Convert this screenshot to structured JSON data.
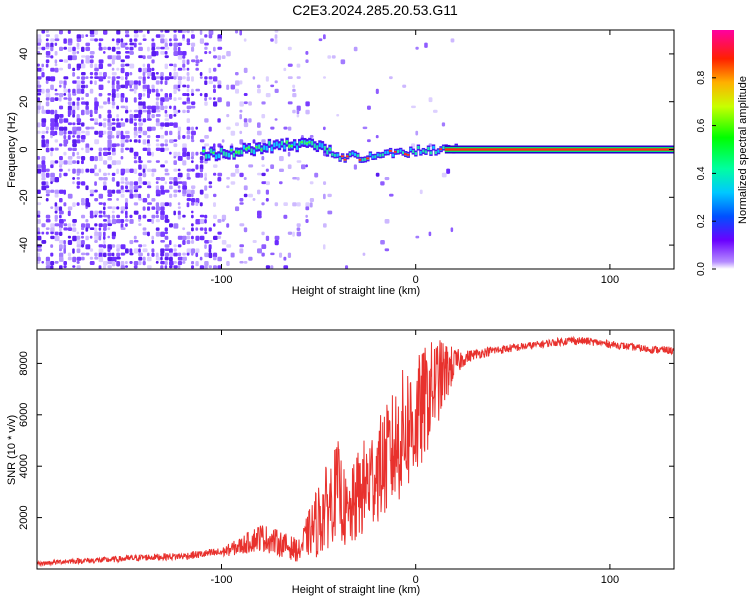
{
  "page_title": "C2E3.2024.285.20.53.G11",
  "colors": {
    "snr_line": "#e8312d",
    "noise_violet": "#6b1fff",
    "frame": "#000000"
  },
  "chart_data": [
    {
      "type": "heatmap",
      "name": "spectrogram",
      "title": "C2E3.2024.285.20.53.G11",
      "xlabel": "Height of straight line (km)",
      "ylabel": "Frequency (Hz)",
      "xlim": [
        -195,
        133
      ],
      "ylim": [
        -50,
        50
      ],
      "x_ticks": [
        -100,
        0,
        100
      ],
      "y_ticks": [
        -40,
        -20,
        0,
        20,
        40
      ],
      "colorbar": {
        "label": "Normalized spectral amplitude",
        "range": [
          0,
          1
        ],
        "ticks": [
          "0.0",
          "0.2",
          "0.4",
          "0.6",
          "0.8"
        ],
        "tick_values": [
          0.0,
          0.2,
          0.4,
          0.6,
          0.8
        ]
      },
      "signal_track": [
        {
          "x": -110,
          "y": -2
        },
        {
          "x": -95,
          "y": -1
        },
        {
          "x": -80,
          "y": 1
        },
        {
          "x": -65,
          "y": 2
        },
        {
          "x": -52,
          "y": 2
        },
        {
          "x": -45,
          "y": -1
        },
        {
          "x": -38,
          "y": -3
        },
        {
          "x": -28,
          "y": -3
        },
        {
          "x": -18,
          "y": -2
        },
        {
          "x": -8,
          "y": -1
        },
        {
          "x": 5,
          "y": 0
        },
        {
          "x": 20,
          "y": 0
        },
        {
          "x": 133,
          "y": 0
        }
      ]
    },
    {
      "type": "line",
      "name": "snr",
      "xlabel": "Height of straight line (km)",
      "ylabel": "SNR (10 * v/v)",
      "xlim": [
        -195,
        133
      ],
      "ylim": [
        0,
        9300
      ],
      "x_ticks": [
        -100,
        0,
        100
      ],
      "y_ticks": [
        2000,
        4000,
        6000,
        8000
      ],
      "series": [
        {
          "name": "SNR",
          "x": [
            -195,
            -180,
            -160,
            -140,
            -120,
            -100,
            -90,
            -80,
            -70,
            -60,
            -55,
            -50,
            -45,
            -40,
            -35,
            -30,
            -25,
            -20,
            -15,
            -10,
            -5,
            0,
            5,
            10,
            15,
            20,
            25,
            30,
            40,
            50,
            60,
            70,
            80,
            90,
            100,
            110,
            120,
            133
          ],
          "values": [
            200,
            300,
            350,
            450,
            500,
            650,
            900,
            1250,
            1000,
            700,
            1400,
            1900,
            2500,
            3200,
            1900,
            2800,
            3300,
            3800,
            4200,
            4800,
            5500,
            5700,
            6500,
            7200,
            7600,
            8000,
            8200,
            8350,
            8500,
            8600,
            8700,
            8800,
            8900,
            8850,
            8750,
            8650,
            8550,
            8500
          ],
          "amplitude": [
            80,
            100,
            120,
            130,
            140,
            180,
            350,
            550,
            500,
            450,
            900,
            1500,
            1700,
            1800,
            1400,
            1800,
            2000,
            2000,
            2200,
            2400,
            2600,
            2500,
            2200,
            1800,
            1300,
            600,
            300,
            200,
            180,
            160,
            150,
            150,
            160,
            150,
            140,
            140,
            150,
            150
          ]
        }
      ]
    }
  ]
}
